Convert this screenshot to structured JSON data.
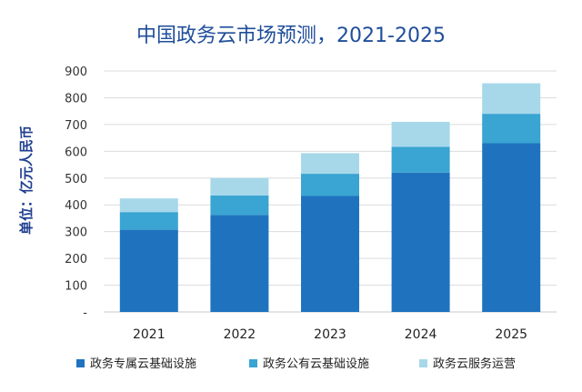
{
  "chart_data": {
    "type": "bar",
    "stacked": true,
    "title": "中国政务云市场预测，2021-2025",
    "xlabel": "",
    "ylabel": "单位：亿元人民币",
    "ylim": [
      0,
      900
    ],
    "yticks": [
      900,
      800,
      700,
      600,
      500,
      400,
      300,
      200,
      100
    ],
    "zero_tick_label": "-",
    "grid": true,
    "legend_position": "bottom",
    "categories": [
      "2021",
      "2022",
      "2023",
      "2024",
      "2025"
    ],
    "series": [
      {
        "name": "政务专属云基础设施",
        "color": "#1f73be",
        "values": [
          307,
          362,
          433,
          520,
          630
        ]
      },
      {
        "name": "政务公有云基础设施",
        "color": "#3aa4d2",
        "values": [
          66,
          73,
          83,
          97,
          110
        ]
      },
      {
        "name": "政务云服务运营",
        "color": "#a7d8ea",
        "values": [
          51,
          65,
          77,
          93,
          114
        ]
      }
    ]
  }
}
